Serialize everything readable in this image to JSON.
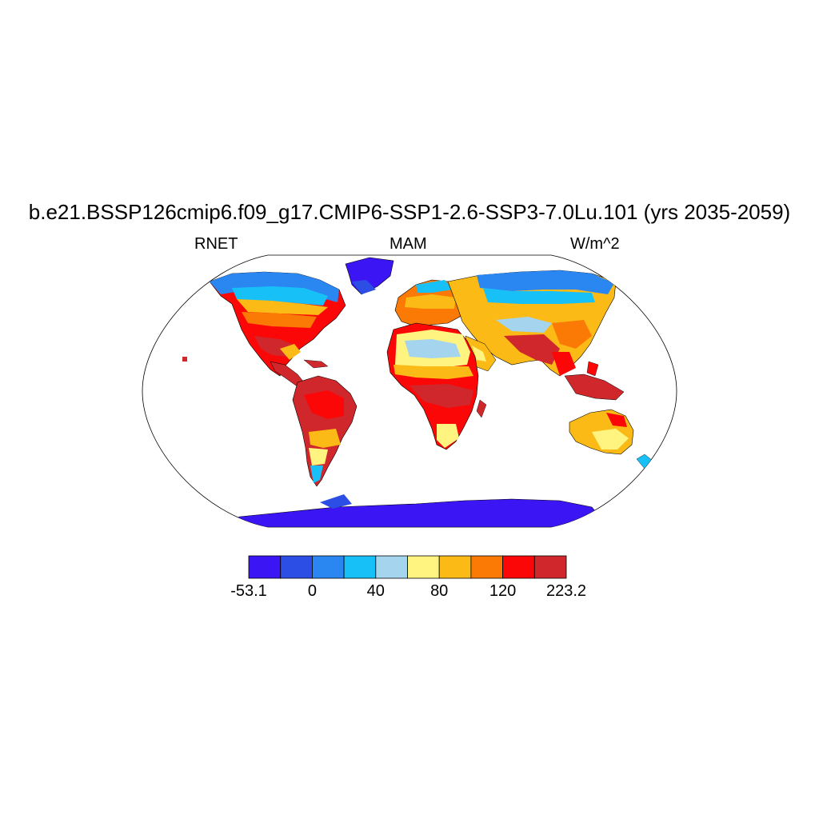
{
  "title": "b.e21.BSSP126cmip6.f09_g17.CMIP6-SSP1-2.6-SSP3-7.0Lu.101 (yrs 2035-2059)",
  "left_label": "RNET",
  "center_label": "MAM",
  "right_label": "W/m^2",
  "colorbar": {
    "colors": [
      "#3c15f5",
      "#2c4ee4",
      "#2a86f1",
      "#18c0f8",
      "#a4d4ee",
      "#fef47f",
      "#fbba15",
      "#fb7a06",
      "#fb0707",
      "#d0272c"
    ],
    "tick_labels": [
      "-53.1",
      "0",
      "40",
      "80",
      "120",
      "223.2"
    ]
  }
}
